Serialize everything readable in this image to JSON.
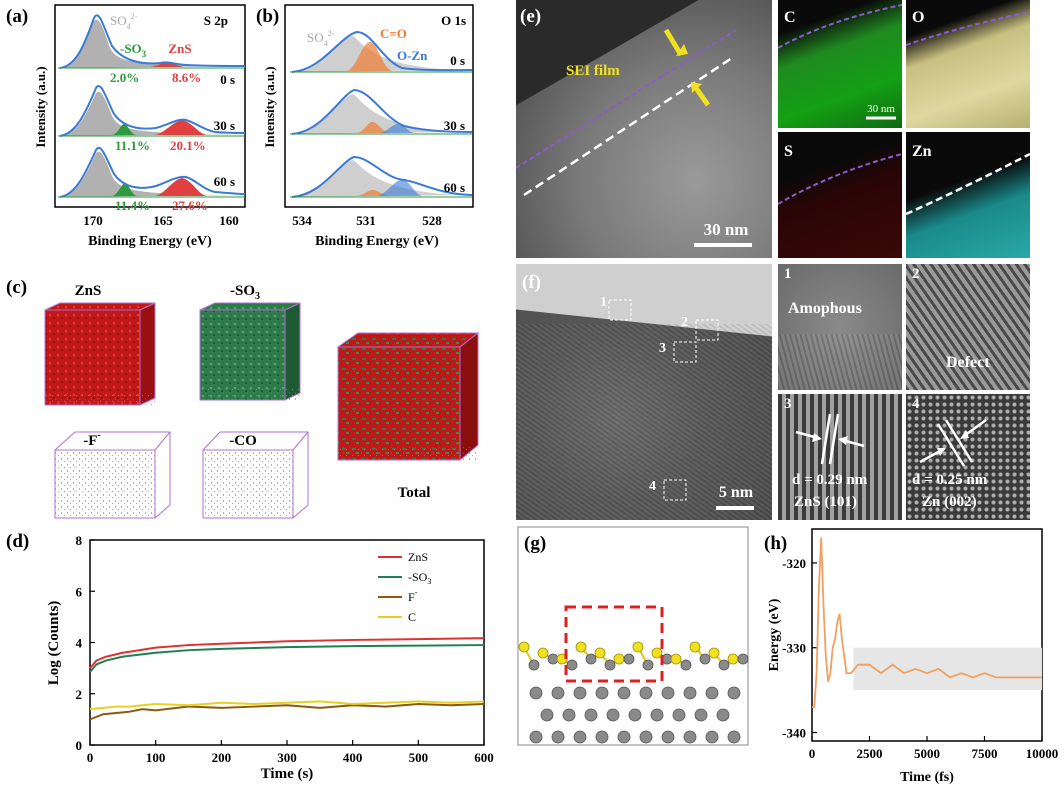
{
  "figure": {
    "panel_labels": {
      "a": "(a)",
      "b": "(b)",
      "c": "(c)",
      "d": "(d)",
      "e": "(e)",
      "f": "(f)",
      "g": "(g)",
      "h": "(h)"
    }
  },
  "panel_a": {
    "title": "S 2p",
    "ylabel": "Intensity (a.u.)",
    "xlabel": "Binding Energy (eV)",
    "xticks": [
      "170",
      "165",
      "160"
    ],
    "species": {
      "so4": "SO",
      "so4_sub": "4",
      "so4_sup": "2-",
      "so3": "-SO",
      "so3_sub": "3",
      "zns": "ZnS"
    },
    "times": [
      "0 s",
      "30 s",
      "60 s"
    ],
    "so3_percent": [
      "2.0%",
      "11.1%",
      "11.4%"
    ],
    "zns_percent": [
      "8.6%",
      "20.1%",
      "27.6%"
    ],
    "colors": {
      "so4": "#a8a8a8",
      "so3": "#2e9a3e",
      "zns": "#e04040",
      "envelope": "#3a7bd5"
    }
  },
  "panel_b": {
    "title": "O 1s",
    "ylabel": "Intensity (a.u.)",
    "xlabel": "Binding Energy (eV)",
    "xticks": [
      "534",
      "531",
      "528"
    ],
    "species": {
      "so4": "SO",
      "so4_sub": "4",
      "so4_sup": "2-",
      "co": "C=O",
      "ozn": "O-Zn"
    },
    "times": [
      "0 s",
      "30 s",
      "60 s"
    ],
    "colors": {
      "co": "#f07a30",
      "ozn": "#3a7bd5"
    }
  },
  "panel_c": {
    "labels": {
      "zns": "ZnS",
      "so3": "-SO",
      "so3_sub": "3",
      "f": "-F",
      "f_sup": "-",
      "co": "-CO",
      "total": "Total"
    }
  },
  "panel_e": {
    "sei_label": "SEI film",
    "scale_main": "30 nm",
    "scale_small": "30 nm",
    "maps": [
      "C",
      "O",
      "S",
      "Zn"
    ]
  },
  "panel_f": {
    "scale": "5 nm",
    "box_labels": [
      "1",
      "2",
      "3",
      "4"
    ],
    "insets": [
      {
        "num": "1",
        "text": "Amophous"
      },
      {
        "num": "2",
        "text": "Defect"
      },
      {
        "num": "3",
        "line1": "d = 0.29 nm",
        "line2": "ZnS (101)"
      },
      {
        "num": "4",
        "line1": "d = 0.25 nm",
        "line2": "Zn (002)"
      }
    ]
  },
  "chart_data": [
    {
      "panel": "d",
      "type": "line",
      "xlabel": "Time (s)",
      "ylabel": "Log (Counts)",
      "xlim": [
        0,
        600
      ],
      "ylim": [
        0,
        8
      ],
      "xticks": [
        0,
        100,
        200,
        300,
        400,
        500,
        600
      ],
      "yticks": [
        0,
        2,
        4,
        6,
        8
      ],
      "series": [
        {
          "name": "ZnS",
          "color": "#e03030",
          "x": [
            0,
            10,
            25,
            50,
            100,
            150,
            200,
            300,
            400,
            500,
            600
          ],
          "y": [
            3.0,
            3.3,
            3.45,
            3.6,
            3.8,
            3.9,
            3.95,
            4.05,
            4.1,
            4.13,
            4.17
          ]
        },
        {
          "name": "-SO",
          "sub": "3",
          "color": "#1e8050",
          "x": [
            0,
            10,
            25,
            50,
            100,
            150,
            200,
            300,
            400,
            500,
            600
          ],
          "y": [
            2.85,
            3.15,
            3.3,
            3.45,
            3.6,
            3.7,
            3.75,
            3.82,
            3.86,
            3.88,
            3.9
          ]
        },
        {
          "name": "F",
          "sup": "-",
          "color": "#8a5a10",
          "x": [
            0,
            20,
            40,
            60,
            80,
            100,
            150,
            200,
            250,
            300,
            350,
            400,
            450,
            500,
            550,
            600
          ],
          "y": [
            1.0,
            1.2,
            1.25,
            1.3,
            1.4,
            1.35,
            1.5,
            1.45,
            1.5,
            1.55,
            1.45,
            1.55,
            1.5,
            1.6,
            1.55,
            1.6
          ]
        },
        {
          "name": "C",
          "color": "#e8d020",
          "x": [
            0,
            20,
            40,
            60,
            80,
            100,
            150,
            200,
            250,
            300,
            350,
            400,
            450,
            500,
            550,
            600
          ],
          "y": [
            1.4,
            1.45,
            1.5,
            1.5,
            1.55,
            1.6,
            1.55,
            1.65,
            1.6,
            1.65,
            1.7,
            1.6,
            1.65,
            1.7,
            1.65,
            1.7
          ]
        }
      ]
    },
    {
      "panel": "h",
      "type": "line",
      "xlabel": "Time (fs)",
      "ylabel": "Energy (eV)",
      "xlim": [
        0,
        10000
      ],
      "ylim": [
        -341,
        -316
      ],
      "xticks": [
        0,
        2500,
        5000,
        7500,
        10000
      ],
      "yticks": [
        -320,
        -330,
        -340
      ],
      "equilibrium_band": [
        -335,
        -330
      ],
      "series": [
        {
          "name": "energy",
          "color": "#f0a060",
          "x": [
            0,
            100,
            200,
            300,
            400,
            500,
            600,
            700,
            800,
            900,
            1000,
            1100,
            1200,
            1300,
            1400,
            1500,
            1700,
            2000,
            2500,
            3000,
            3500,
            4000,
            4500,
            5000,
            5500,
            6000,
            6500,
            7000,
            7500,
            8000,
            8500,
            9000,
            9500,
            10000
          ],
          "y": [
            -337,
            -337,
            -333,
            -323,
            -317,
            -325,
            -331,
            -334,
            -333,
            -330,
            -329,
            -327,
            -326,
            -329,
            -331,
            -333,
            -333,
            -332,
            -332,
            -333,
            -332,
            -333,
            -332.5,
            -333,
            -332.5,
            -333.5,
            -333,
            -333.5,
            -333,
            -333.5,
            -333.5,
            -333.5,
            -333.5,
            -333.5
          ]
        }
      ]
    }
  ]
}
